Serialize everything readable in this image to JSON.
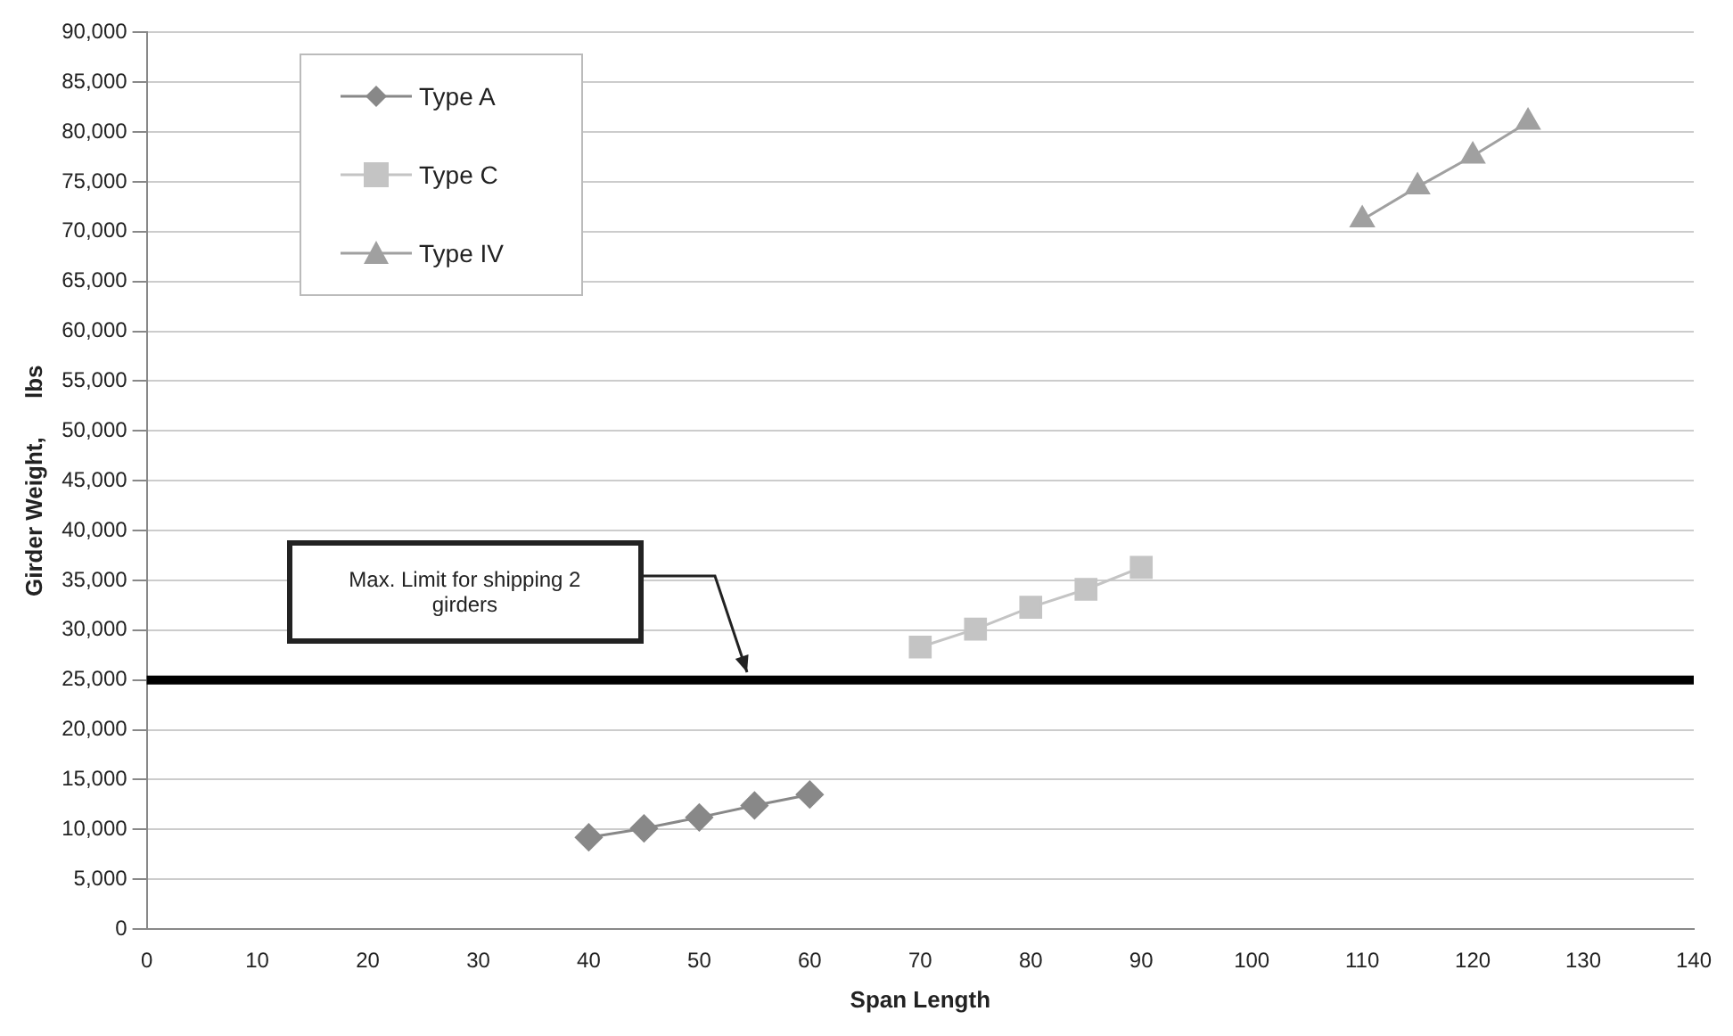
{
  "chart_data": {
    "type": "line",
    "xlabel": "Span Length",
    "ylabel": "Girder Weight,      lbs",
    "xlim": [
      0,
      140
    ],
    "xticks": [
      0,
      10,
      20,
      30,
      40,
      50,
      60,
      70,
      80,
      90,
      100,
      110,
      120,
      130,
      140
    ],
    "ylim": [
      0,
      90000
    ],
    "yticks": [
      {
        "value": 0,
        "label": "0"
      },
      {
        "value": 5000,
        "label": "5,000"
      },
      {
        "value": 10000,
        "label": "10,000"
      },
      {
        "value": 15000,
        "label": "15,000"
      },
      {
        "value": 20000,
        "label": "20,000"
      },
      {
        "value": 25000,
        "label": "25,000"
      },
      {
        "value": 30000,
        "label": "30,000"
      },
      {
        "value": 35000,
        "label": "35,000"
      },
      {
        "value": 40000,
        "label": "40,000"
      },
      {
        "value": 45000,
        "label": "45,000"
      },
      {
        "value": 50000,
        "label": "50,000"
      },
      {
        "value": 55000,
        "label": "55,000"
      },
      {
        "value": 60000,
        "label": "60,000"
      },
      {
        "value": 65000,
        "label": "65,000"
      },
      {
        "value": 70000,
        "label": "70,000"
      },
      {
        "value": 75000,
        "label": "75,000"
      },
      {
        "value": 80000,
        "label": "80,000"
      },
      {
        "value": 85000,
        "label": "85,000"
      },
      {
        "value": 90000,
        "label": "90,000"
      }
    ],
    "grid": "y",
    "legend": "top left",
    "series": [
      {
        "name": "Type A",
        "color": "#888888",
        "marker": "diamond",
        "x": [
          40,
          45,
          50,
          55,
          60
        ],
        "values": [
          9200,
          10100,
          11200,
          12400,
          13500
        ]
      },
      {
        "name": "Type C",
        "color": "#c4c4c4",
        "marker": "square",
        "x": [
          70,
          75,
          80,
          85,
          90
        ],
        "values": [
          28300,
          30100,
          32300,
          34100,
          36300
        ]
      },
      {
        "name": "Type IV",
        "color": "#a0a0a0",
        "marker": "triangle",
        "x": [
          110,
          115,
          120,
          125
        ],
        "values": [
          71200,
          74500,
          77600,
          81000
        ]
      }
    ],
    "ref_lines": [
      {
        "axis": "y",
        "value": 25000,
        "color": "#000000"
      }
    ],
    "annotations": [
      "Max. Limit for shipping 2 girders"
    ]
  }
}
